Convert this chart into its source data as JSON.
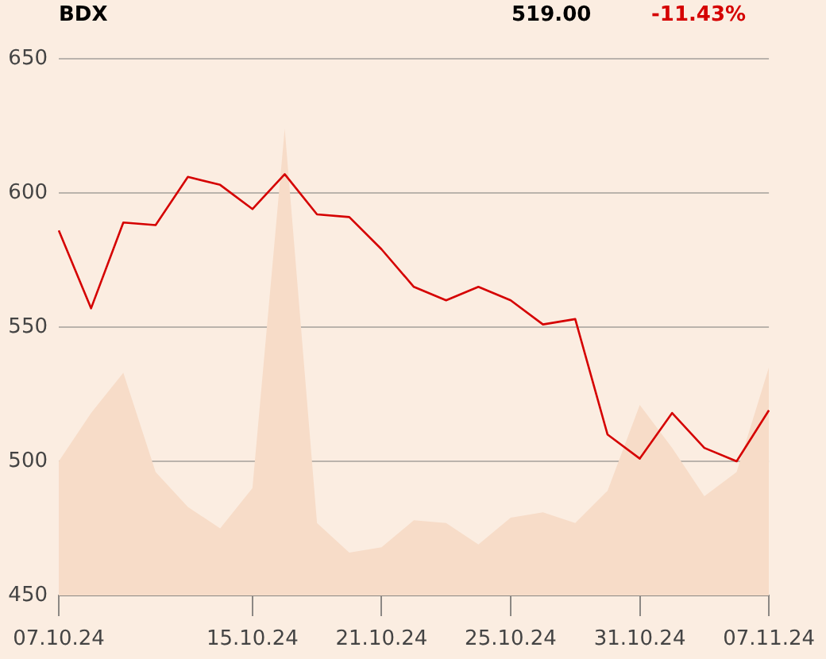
{
  "chart_data": {
    "type": "line",
    "title": "BDX",
    "annotations": [
      "519.00",
      "-11.43%"
    ],
    "categories": [
      "07.10.24",
      null,
      null,
      null,
      null,
      null,
      "15.10.24",
      null,
      null,
      null,
      "21.10.24",
      null,
      null,
      null,
      "25.10.24",
      null,
      null,
      null,
      "31.10.24",
      null,
      null,
      null,
      "07.11.24"
    ],
    "series": [
      {
        "type": "area",
        "color": "#f7dcc8",
        "values": [
          500,
          518,
          533,
          496,
          483,
          475,
          490,
          624,
          477,
          466,
          468,
          478,
          477,
          469,
          479,
          481,
          477,
          489,
          521,
          505,
          487,
          496,
          535
        ]
      },
      {
        "type": "line",
        "color": "#d50000",
        "values": [
          586,
          557,
          589,
          588,
          606,
          603,
          594,
          607,
          592,
          591,
          579,
          565,
          560,
          565,
          560,
          551,
          553,
          510,
          501,
          518,
          505,
          500,
          519
        ]
      }
    ],
    "ylim": [
      450,
      650
    ],
    "yticks": [
      450,
      500,
      550,
      600,
      650
    ],
    "grid": "y",
    "legend": false,
    "marker": "none"
  }
}
